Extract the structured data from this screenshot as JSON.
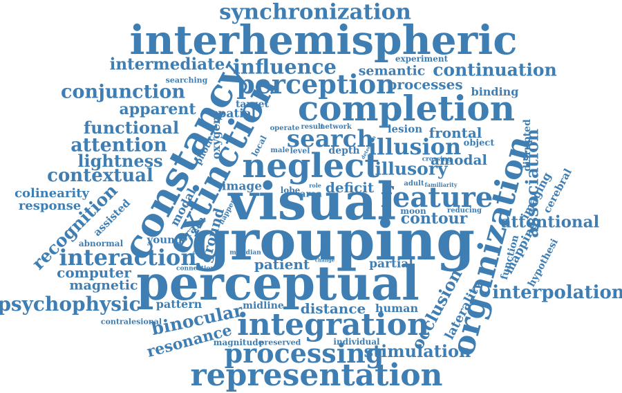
{
  "canvas": {
    "background": "#ffffff"
  },
  "style": {
    "word_color": "#3f7eb3",
    "font_weight": "bold",
    "font_style": "serif"
  },
  "words": {
    "synchronization": "synchronization",
    "interhemispheric": "interhemispheric",
    "experiment": "experiment",
    "intermediate": "intermediate",
    "influence": "influence",
    "semantic": "semantic",
    "continuation": "continuation",
    "searching": "searching",
    "perception": "perception",
    "processes": "processes",
    "conjunction": "conjunction",
    "binding": "binding",
    "target": "target",
    "completion": "completion",
    "apparent": "apparent",
    "spatial": "spatial",
    "constancy": "constancy",
    "extinction": "extinction",
    "functional": "functional",
    "oxygen": "oxygen",
    "operate": "operate",
    "result": "result",
    "network": "network",
    "lesion": "lesion",
    "disrupted": "disrupted",
    "frontal": "frontal",
    "search": "search",
    "attention": "attention",
    "photic": "photic",
    "local": "local",
    "male": "male",
    "level": "level",
    "depth": "depth",
    "detection": "detection",
    "illusion": "illusion",
    "object": "object",
    "lightness": "lightness",
    "neglect": "neglect",
    "crossing": "crossing",
    "amodal": "amodal",
    "association": "association",
    "contextual": "contextual",
    "illusory": "illusory",
    "imaging": "imaging",
    "colinearity": "colinearity",
    "image": "image",
    "lobe": "lobe",
    "role": "role",
    "deficit": "deficit",
    "adult": "adult",
    "familiarity": "familiarity",
    "cerebral": "cerebral",
    "response": "response",
    "recognition": "recognition",
    "visual": "visual",
    "area": "area",
    "feature": "feature",
    "mapping": "mapping",
    "assisted": "assisted",
    "moon": "moon",
    "reducing": "reducing",
    "organization": "organization",
    "modal": "modal",
    "happen": "happen",
    "contour": "contour",
    "attentional": "attentional",
    "young": "young",
    "brain": "brain",
    "abnormal": "abnormal",
    "ground": "ground",
    "grouping": "grouping",
    "function": "function",
    "hypothesi": "hypothesi",
    "interaction": "interaction",
    "evidence": "evidence",
    "meridian": "meridian",
    "connection": "connection",
    "patient": "patient",
    "partial": "partial",
    "change": "change",
    "computer": "computer",
    "perceptual": "perceptual",
    "magnetic": "magnetic",
    "occlusion": "occlusion",
    "laterality": "laterality",
    "interpolation": "interpolation",
    "psychophysic": "psychophysic",
    "pattern": "pattern",
    "midline": "midline",
    "distance": "distance",
    "human": "human",
    "binocular": "binocular",
    "contralesional": "contralesional",
    "integration": "integration",
    "resonance": "resonance",
    "magnitude": "magnitude",
    "preserved": "preserved",
    "individual": "individual",
    "processing": "processing",
    "stimulation": "stimulation",
    "representation": "representation"
  }
}
